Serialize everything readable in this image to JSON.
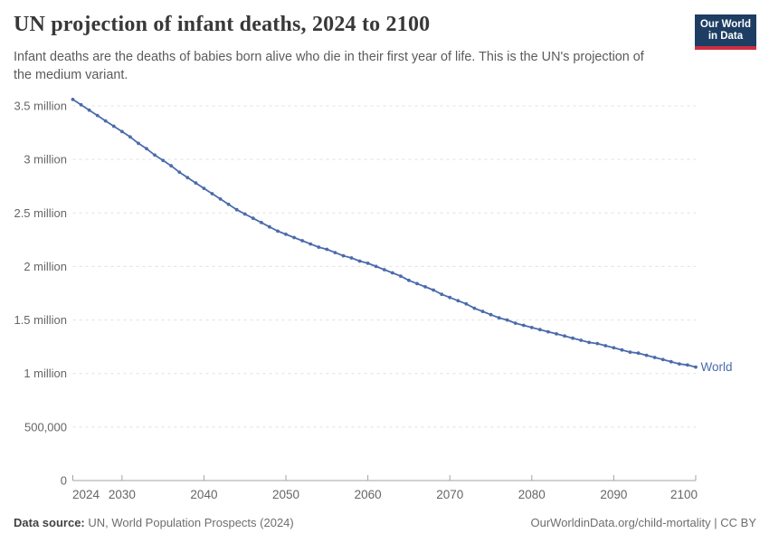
{
  "header": {
    "title": "UN projection of infant deaths, 2024 to 2100",
    "subtitle_lines": [
      "Infant deaths are the deaths of babies born alive who die in their first year of life. This is the UN's projection of",
      "the medium variant."
    ],
    "logo": {
      "line1": "Our World",
      "line2": "in Data"
    }
  },
  "footer": {
    "datasource_label": "Data source:",
    "datasource_text": " UN, World Population Prospects (2024)",
    "credit_text": "OurWorldinData.org/child-mortality | CC BY"
  },
  "colors": {
    "series_blue": "#4b6bab",
    "grid": "#e0e0e0",
    "axis": "#a3a3a3",
    "tick_label": "#666666",
    "logo_bg": "#1d3d63",
    "logo_accent": "#cf2e41"
  },
  "chart_data": {
    "type": "line",
    "title": "UN projection of infant deaths, 2024 to 2100",
    "xlabel": "",
    "ylabel": "",
    "xlim": [
      2024,
      2100
    ],
    "ylim": [
      0,
      3500000
    ],
    "grid": "horizontal-dashed",
    "legend_position": "end-of-line-label",
    "x_ticks": [
      2024,
      2030,
      2040,
      2050,
      2060,
      2070,
      2080,
      2090,
      2100
    ],
    "y_ticks": [
      {
        "value": 0,
        "label": "0"
      },
      {
        "value": 500000,
        "label": "500,000"
      },
      {
        "value": 1000000,
        "label": "1 million"
      },
      {
        "value": 1500000,
        "label": "1.5 million"
      },
      {
        "value": 2000000,
        "label": "2 million"
      },
      {
        "value": 2500000,
        "label": "2.5 million"
      },
      {
        "value": 3000000,
        "label": "3 million"
      },
      {
        "value": 3500000,
        "label": "3.5 million"
      }
    ],
    "series": [
      {
        "name": "World",
        "unit": "infant deaths per year (millions)",
        "years": [
          2024,
          2025,
          2026,
          2027,
          2028,
          2029,
          2030,
          2031,
          2032,
          2033,
          2034,
          2035,
          2036,
          2037,
          2038,
          2039,
          2040,
          2041,
          2042,
          2043,
          2044,
          2045,
          2046,
          2047,
          2048,
          2049,
          2050,
          2051,
          2052,
          2053,
          2054,
          2055,
          2056,
          2057,
          2058,
          2059,
          2060,
          2061,
          2062,
          2063,
          2064,
          2065,
          2066,
          2067,
          2068,
          2069,
          2070,
          2071,
          2072,
          2073,
          2074,
          2075,
          2076,
          2077,
          2078,
          2079,
          2080,
          2081,
          2082,
          2083,
          2084,
          2085,
          2086,
          2087,
          2088,
          2089,
          2090,
          2091,
          2092,
          2093,
          2094,
          2095,
          2096,
          2097,
          2098,
          2099,
          2100
        ],
        "values_millions": [
          3.56,
          3.51,
          3.46,
          3.41,
          3.36,
          3.31,
          3.26,
          3.21,
          3.15,
          3.1,
          3.04,
          2.99,
          2.94,
          2.88,
          2.83,
          2.78,
          2.73,
          2.68,
          2.63,
          2.58,
          2.53,
          2.49,
          2.45,
          2.41,
          2.37,
          2.33,
          2.3,
          2.27,
          2.24,
          2.21,
          2.18,
          2.16,
          2.13,
          2.1,
          2.08,
          2.05,
          2.03,
          2.0,
          1.97,
          1.94,
          1.91,
          1.87,
          1.84,
          1.81,
          1.78,
          1.74,
          1.71,
          1.68,
          1.65,
          1.61,
          1.58,
          1.55,
          1.52,
          1.5,
          1.47,
          1.45,
          1.43,
          1.41,
          1.39,
          1.37,
          1.35,
          1.33,
          1.31,
          1.29,
          1.28,
          1.26,
          1.24,
          1.22,
          1.2,
          1.19,
          1.17,
          1.15,
          1.13,
          1.11,
          1.09,
          1.08,
          1.06
        ]
      }
    ]
  }
}
